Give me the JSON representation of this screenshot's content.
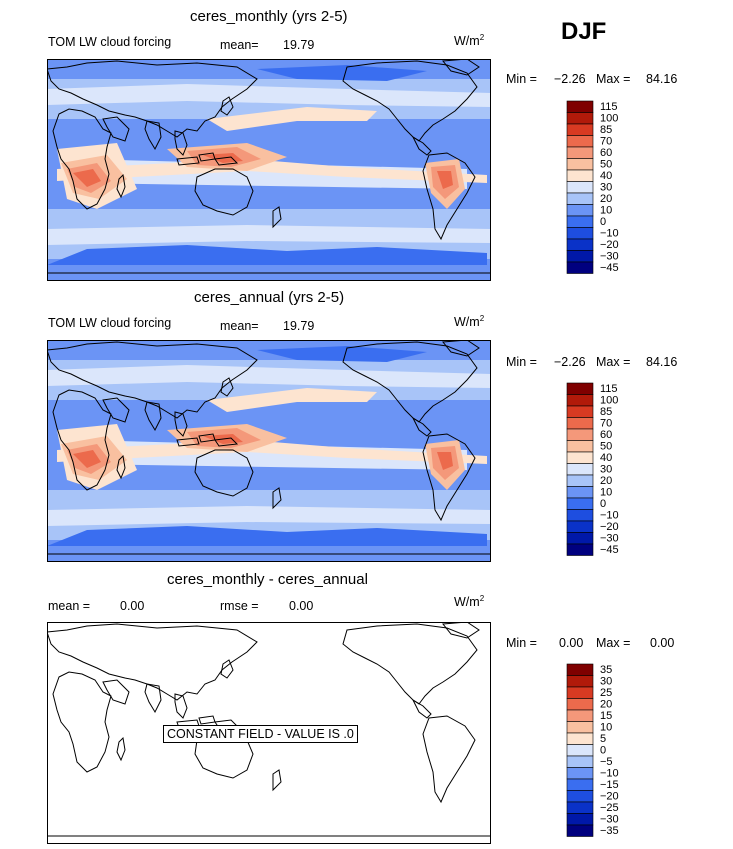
{
  "season": "DJF",
  "palette_main": [
    "#00007f",
    "#0018a8",
    "#0a32c8",
    "#1e4ee0",
    "#3a6ef0",
    "#6b94f5",
    "#a8c4f8",
    "#dbe6fb",
    "#fde4d0",
    "#f9c0a0",
    "#f4987a",
    "#ec6a4c",
    "#d83a22",
    "#b11a0a",
    "#7f0000"
  ],
  "palette_diff": [
    "#00007f",
    "#0018a8",
    "#0a32c8",
    "#1e4ee0",
    "#3a6ef0",
    "#6b94f5",
    "#a8c4f8",
    "#dbe6fb",
    "#fde4d0",
    "#f9c0a0",
    "#f4987a",
    "#ec6a4c",
    "#d83a22",
    "#b11a0a",
    "#7f0000"
  ],
  "chart_data": [
    {
      "type": "heatmap",
      "title": "ceres_monthly (yrs 2-5)",
      "subtitle": "TOM LW cloud forcing",
      "mean_label": "mean=",
      "mean": "19.79",
      "units": "W/m",
      "units_sup": "2",
      "min_label": "Min =",
      "min": "−2.26",
      "max_label": "Max =",
      "max": "84.16",
      "colorbar_levels": [
        "115",
        "100",
        "85",
        "70",
        "60",
        "50",
        "40",
        "30",
        "20",
        "10",
        "0",
        "−10",
        "−20",
        "−30",
        "−45"
      ]
    },
    {
      "type": "heatmap",
      "title": "ceres_annual (yrs 2-5)",
      "subtitle": "TOM LW cloud forcing",
      "mean_label": "mean=",
      "mean": "19.79",
      "units": "W/m",
      "units_sup": "2",
      "min_label": "Min =",
      "min": "−2.26",
      "max_label": "Max =",
      "max": "84.16",
      "colorbar_levels": [
        "115",
        "100",
        "85",
        "70",
        "60",
        "50",
        "40",
        "30",
        "20",
        "10",
        "0",
        "−10",
        "−20",
        "−30",
        "−45"
      ]
    },
    {
      "type": "heatmap",
      "title": "ceres_monthly - ceres_annual",
      "mean_label": "mean =",
      "mean": "0.00",
      "rmse_label": "rmse =",
      "rmse": "0.00",
      "units": "W/m",
      "units_sup": "2",
      "min_label": "Min =",
      "min": "0.00",
      "max_label": "Max =",
      "max": "0.00",
      "annotation": "CONSTANT FIELD - VALUE IS .0",
      "colorbar_levels": [
        "35",
        "30",
        "25",
        "20",
        "15",
        "10",
        "5",
        "0",
        "−5",
        "−10",
        "−15",
        "−20",
        "−25",
        "−30",
        "−35"
      ]
    }
  ]
}
